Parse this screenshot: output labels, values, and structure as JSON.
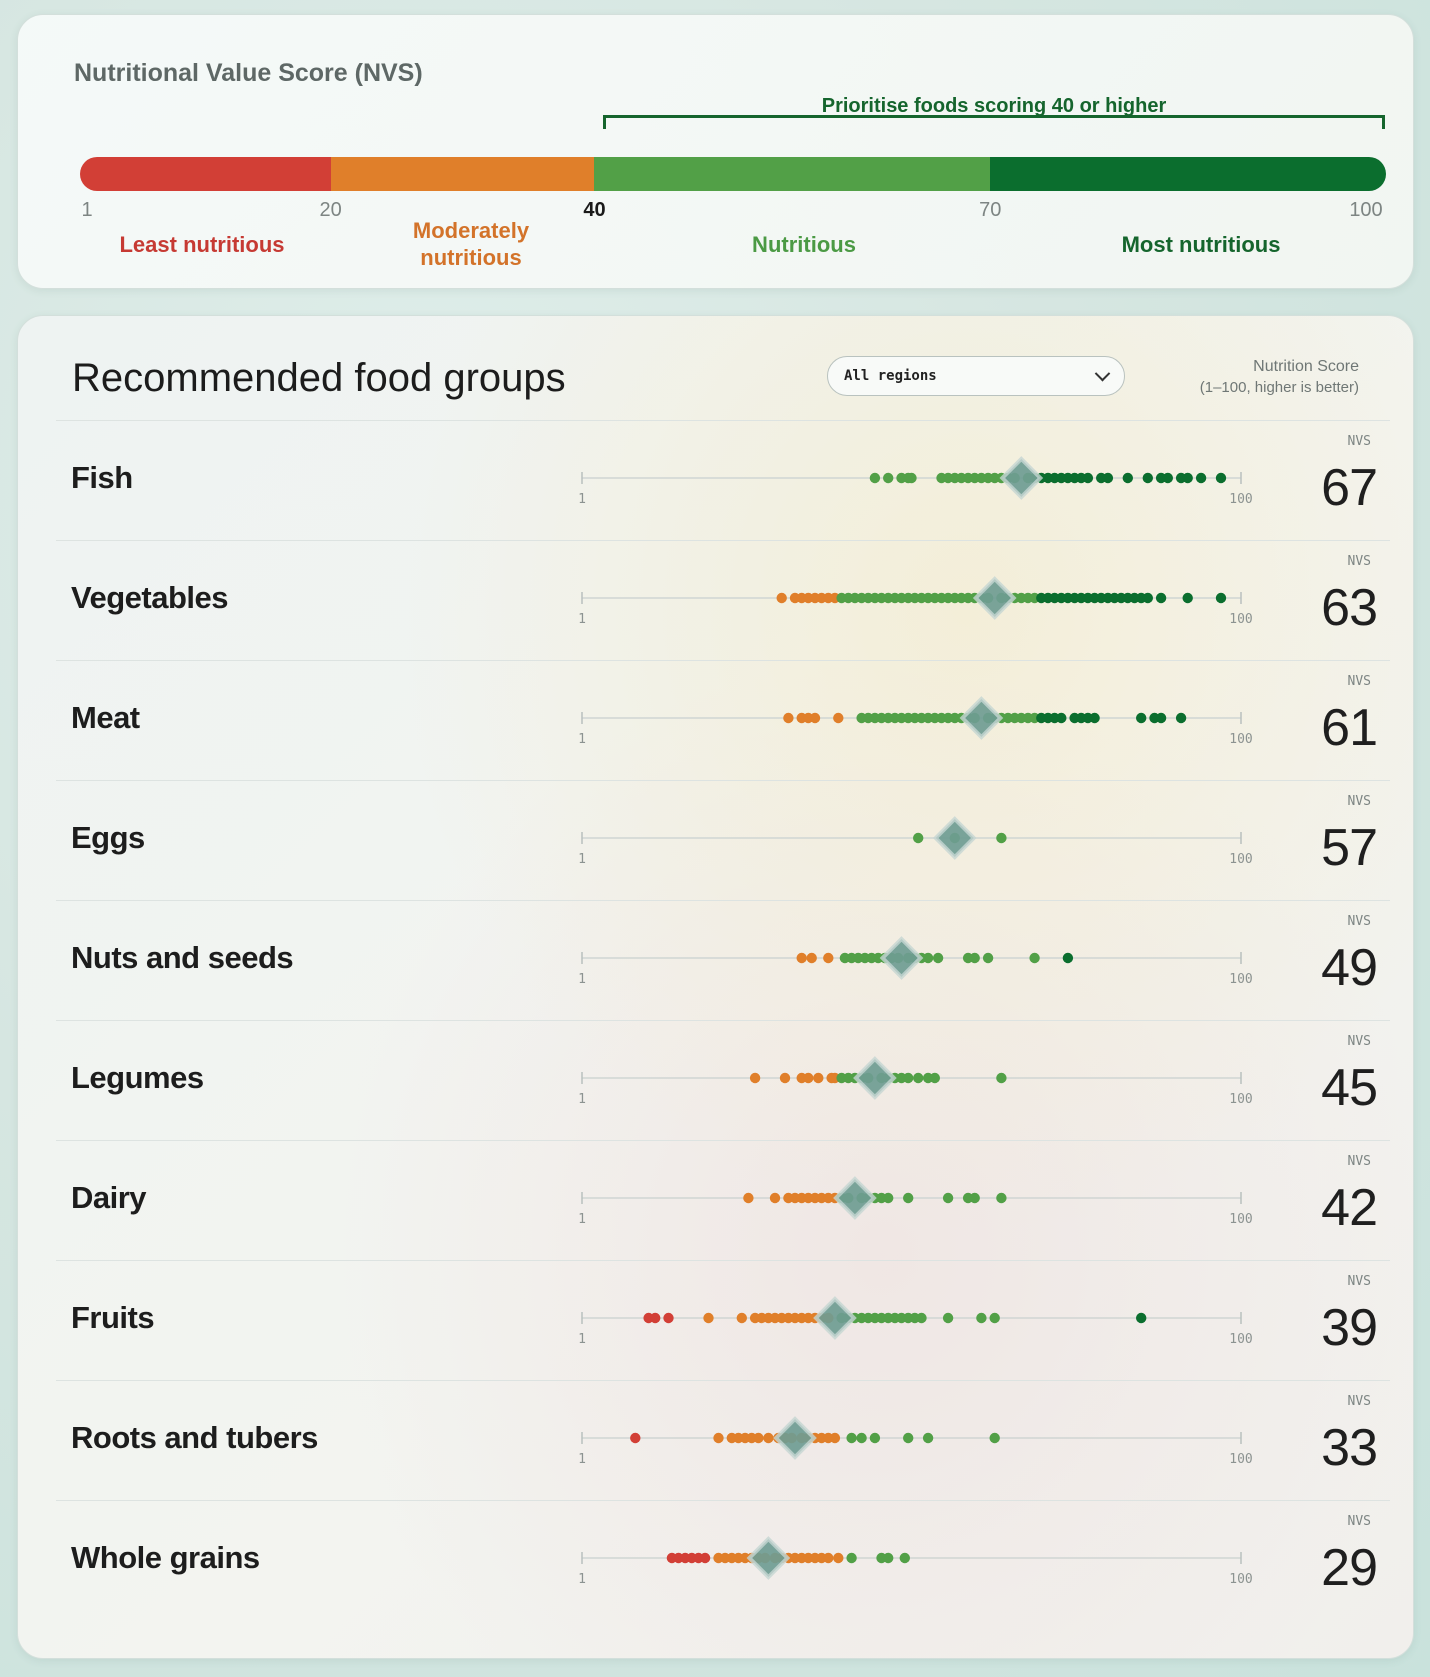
{
  "legend": {
    "title": "Nutritional Value Score (NVS)",
    "bracket_label": "Prioritise foods scoring 40 or higher",
    "ticks": [
      {
        "value": 1,
        "label": "1",
        "strong": false
      },
      {
        "value": 20,
        "label": "20",
        "strong": false
      },
      {
        "value": 40,
        "label": "40",
        "strong": true
      },
      {
        "value": 70,
        "label": "70",
        "strong": false
      },
      {
        "value": 100,
        "label": "100",
        "strong": false
      }
    ],
    "bands": [
      {
        "from": 1,
        "to": 20,
        "color": "#d23f36",
        "label": "Least nutritious",
        "label_color": "#c63a33"
      },
      {
        "from": 20,
        "to": 40,
        "color": "#e07f2a",
        "label": "Moderately nutritious",
        "label_color": "#d3732a"
      },
      {
        "from": 40,
        "to": 70,
        "color": "#52a047",
        "label": "Nutritious",
        "label_color": "#4b9a44"
      },
      {
        "from": 70,
        "to": 100,
        "color": "#0b6e2e",
        "label": "Most nutritious",
        "label_color": "#15652d"
      }
    ]
  },
  "groups_panel": {
    "title": "Recommended food groups",
    "region_select": {
      "value": "All regions"
    },
    "score_header": {
      "line1": "Nutrition Score",
      "line2": "(1–100, higher is better)"
    },
    "nvs_caption": "NVS",
    "axis_min_label": "1",
    "axis_max_label": "100"
  },
  "colors": {
    "red": "#d23f36",
    "orange": "#e07f2a",
    "green": "#52a047",
    "dark_green": "#0b6e2e",
    "diamond": "#6f9c93"
  },
  "chart_data": {
    "type": "scatter",
    "title": "Recommended food groups",
    "xlim": [
      1,
      100
    ],
    "x_axis_labels": [
      "1",
      "100"
    ],
    "marker_color_bands": [
      {
        "from": 1,
        "to": 20,
        "color": "red"
      },
      {
        "from": 20,
        "to": 40,
        "color": "orange"
      },
      {
        "from": 40,
        "to": 70,
        "color": "green"
      },
      {
        "from": 70,
        "to": 100,
        "color": "dark green"
      }
    ],
    "series": [
      {
        "name": "Fish",
        "nvs": 67,
        "points": [
          45,
          47,
          49,
          50,
          50.5,
          55,
          56,
          57,
          58,
          59,
          60,
          61,
          62,
          63,
          64,
          65,
          66,
          68,
          69,
          70,
          71,
          72,
          73,
          74,
          75,
          76,
          77,
          79,
          80,
          83,
          86,
          88,
          89,
          91,
          92,
          94,
          97
        ]
      },
      {
        "name": "Vegetables",
        "nvs": 63,
        "points": [
          31,
          33,
          34,
          35,
          36,
          37,
          38,
          39,
          40,
          41,
          42,
          43,
          44,
          45,
          46,
          47,
          48,
          49,
          50,
          51,
          52,
          53,
          54,
          55,
          56,
          57,
          58,
          59,
          60,
          61,
          62,
          64,
          65,
          66,
          67,
          68,
          69,
          70,
          71,
          72,
          73,
          74,
          75,
          76,
          77,
          78,
          79,
          80,
          81,
          82,
          83,
          84,
          85,
          86,
          88,
          92,
          97
        ]
      },
      {
        "name": "Meat",
        "nvs": 61,
        "points": [
          32,
          34,
          35,
          36,
          39.5,
          43,
          44,
          45,
          46,
          47,
          48,
          49,
          50,
          51,
          52,
          53,
          54,
          55,
          56,
          57,
          58,
          59,
          60,
          62,
          63,
          64,
          65,
          66,
          67,
          68,
          69,
          70,
          71,
          72,
          73,
          75,
          76,
          77,
          78,
          85,
          87,
          88,
          91
        ]
      },
      {
        "name": "Eggs",
        "nvs": 57,
        "points": [
          51.5,
          57,
          64
        ]
      },
      {
        "name": "Nuts and seeds",
        "nvs": 49,
        "points": [
          34,
          35.5,
          38,
          40.5,
          41.5,
          42.5,
          43.5,
          44.5,
          45.5,
          46.5,
          47.5,
          48.5,
          50,
          51,
          52,
          53,
          54.5,
          59,
          60,
          62,
          69,
          74
        ]
      },
      {
        "name": "Legumes",
        "nvs": 45,
        "points": [
          27,
          31.5,
          34,
          35,
          36.5,
          38.5,
          39,
          40,
          41,
          42,
          43,
          44,
          46,
          47,
          48,
          49,
          50,
          51.5,
          53,
          54,
          64
        ]
      },
      {
        "name": "Dairy",
        "nvs": 42,
        "points": [
          26,
          30,
          32,
          33,
          34,
          35,
          36,
          37,
          38,
          39,
          40,
          41,
          43,
          44,
          45,
          46,
          47,
          50,
          56,
          59,
          60,
          64
        ]
      },
      {
        "name": "Fruits",
        "nvs": 39,
        "points": [
          11,
          12,
          14,
          20,
          25,
          27,
          28,
          29,
          30,
          31,
          32,
          33,
          34,
          35,
          36,
          37,
          38,
          40,
          41,
          42,
          43,
          44,
          45,
          46,
          47,
          48,
          49,
          50,
          51,
          52,
          56,
          61,
          63,
          85
        ]
      },
      {
        "name": "Roots and tubers",
        "nvs": 33,
        "points": [
          9,
          21.5,
          23.5,
          24.5,
          25.5,
          26.5,
          27.5,
          29,
          30.5,
          31.5,
          32.5,
          34,
          35,
          36,
          37,
          38,
          39,
          41.5,
          43,
          45,
          50,
          53,
          63
        ]
      },
      {
        "name": "Whole grains",
        "nvs": 29,
        "points": [
          14.5,
          15.5,
          16.5,
          17.5,
          18.5,
          19.5,
          21.5,
          22.5,
          23.5,
          24.5,
          25.5,
          26.5,
          27.5,
          28.5,
          30,
          31,
          32,
          33,
          34,
          35,
          36,
          37,
          38,
          39.5,
          41.5,
          46,
          47,
          49.5
        ]
      }
    ]
  }
}
